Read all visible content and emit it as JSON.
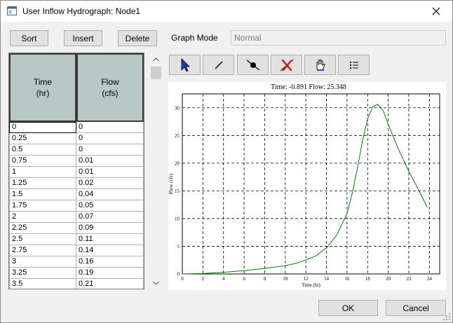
{
  "window": {
    "title": "User Inflow Hydrograph: Node1"
  },
  "toolbar": {
    "sort_label": "Sort",
    "insert_label": "Insert",
    "delete_label": "Delete"
  },
  "graph_mode": {
    "label": "Graph Mode",
    "value": "Normal"
  },
  "table": {
    "headers": [
      {
        "line1": "Time",
        "line2": "(hr)"
      },
      {
        "line1": "Flow",
        "line2": "(cfs)"
      }
    ],
    "rows": [
      [
        "0",
        "0"
      ],
      [
        "0.25",
        "0"
      ],
      [
        "0.5",
        "0"
      ],
      [
        "0.75",
        "0.01"
      ],
      [
        "1",
        "0.01"
      ],
      [
        "1.25",
        "0.02"
      ],
      [
        "1.5",
        "0.04"
      ],
      [
        "1.75",
        "0.05"
      ],
      [
        "2",
        "0.07"
      ],
      [
        "2.25",
        "0.09"
      ],
      [
        "2.5",
        "0.11"
      ],
      [
        "2.75",
        "0.14"
      ],
      [
        "3",
        "0.16"
      ],
      [
        "3.25",
        "0.19"
      ],
      [
        "3.5",
        "0.21"
      ]
    ]
  },
  "graph_tools": [
    {
      "name": "select-pointer-icon"
    },
    {
      "name": "draw-line-icon"
    },
    {
      "name": "edit-point-icon"
    },
    {
      "name": "delete-point-icon"
    },
    {
      "name": "pan-hand-icon"
    },
    {
      "name": "list-icon"
    }
  ],
  "chart_data": {
    "type": "line",
    "title": "Time: -0.891 Flow: 25.348",
    "xlabel": "Time (hr)",
    "ylabel": "Flow (cfs)",
    "xlim": [
      0,
      25
    ],
    "ylim": [
      0,
      32.5
    ],
    "xticks": [
      0,
      2,
      4,
      6,
      8,
      10,
      12,
      14,
      16,
      18,
      20,
      22,
      24
    ],
    "yticks": [
      0,
      5,
      10,
      15,
      20,
      25,
      30
    ],
    "grid": true,
    "series": [
      {
        "color": "#008000",
        "x": [
          0,
          2,
          4,
          6,
          8,
          10,
          11,
          12,
          13,
          14,
          15,
          16,
          16.5,
          17,
          17.5,
          18,
          18.5,
          19,
          19.5,
          20,
          21,
          22,
          23,
          23.8
        ],
        "y": [
          0,
          0.07,
          0.3,
          0.6,
          1.0,
          1.5,
          1.9,
          2.5,
          3.3,
          4.7,
          7.0,
          10.9,
          14.5,
          19.0,
          24.0,
          28.0,
          30.2,
          30.6,
          29.5,
          27.0,
          22.5,
          18.5,
          15.0,
          12.0
        ]
      }
    ]
  },
  "footer": {
    "ok_label": "OK",
    "cancel_label": "Cancel"
  }
}
